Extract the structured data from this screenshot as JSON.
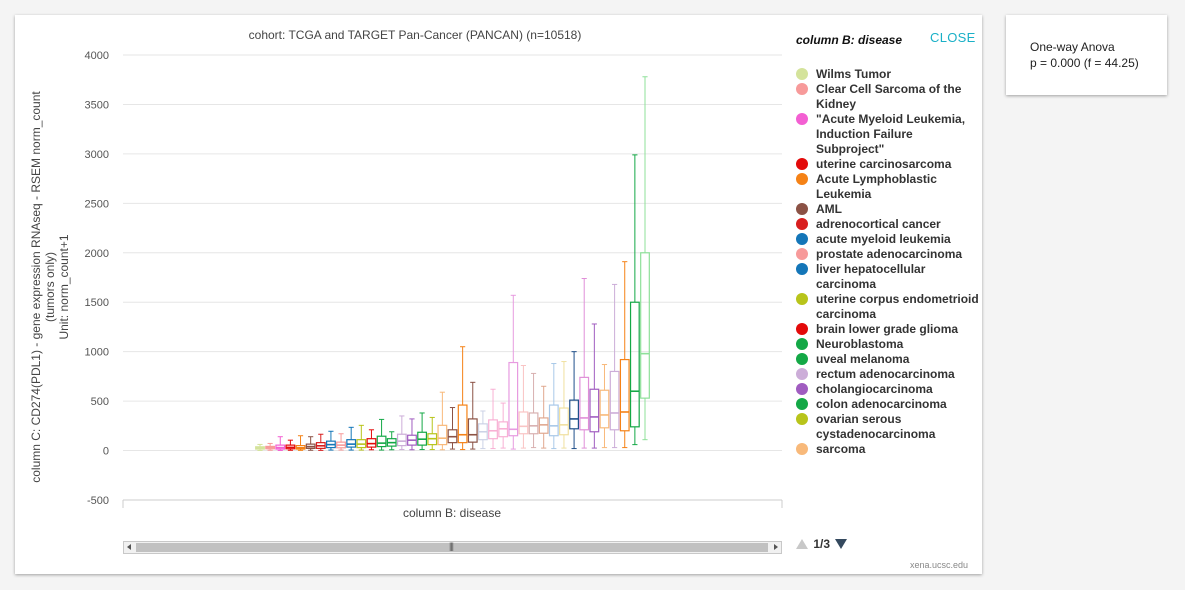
{
  "close_label": "CLOSE",
  "legend_title": "column B: disease",
  "legend": [
    {
      "name": "Wilms Tumor",
      "color": "#d4e39b"
    },
    {
      "name": "Clear Cell Sarcoma of the Kidney",
      "color": "#f79a9a"
    },
    {
      "name": "\"Acute Myeloid Leukemia, Induction Failure Subproject\"",
      "color": "#f35fd2"
    },
    {
      "name": "uterine carcinosarcoma",
      "color": "#e30a0a"
    },
    {
      "name": "Acute Lymphoblastic Leukemia",
      "color": "#f58216"
    },
    {
      "name": "AML",
      "color": "#8b5245"
    },
    {
      "name": "adrenocortical cancer",
      "color": "#d81e1e"
    },
    {
      "name": "acute myeloid leukemia",
      "color": "#1476b8"
    },
    {
      "name": "prostate adenocarcinoma",
      "color": "#f79a9a"
    },
    {
      "name": "liver hepatocellular carcinoma",
      "color": "#1476b8"
    },
    {
      "name": "uterine corpus endometrioid carcinoma",
      "color": "#b8c41b"
    },
    {
      "name": "brain lower grade glioma",
      "color": "#e30a0a"
    },
    {
      "name": "Neuroblastoma",
      "color": "#14a846"
    },
    {
      "name": "uveal melanoma",
      "color": "#14a846"
    },
    {
      "name": "rectum adenocarcinoma",
      "color": "#ccadd8"
    },
    {
      "name": "cholangiocarcinoma",
      "color": "#a05cc0"
    },
    {
      "name": "colon adenocarcinoma",
      "color": "#14a846"
    },
    {
      "name": "ovarian serous cystadenocarcinoma",
      "color": "#b8c41b"
    },
    {
      "name": "sarcoma",
      "color": "#f8b97a"
    }
  ],
  "pager": {
    "text": "1/3"
  },
  "stats": {
    "line1": "One-way Anova",
    "line2": "p = 0.000 (f = 44.25)"
  },
  "credit": "xena.ucsc.edu",
  "chart_data": {
    "type": "box",
    "title": "cohort: TCGA and TARGET Pan-Cancer (PANCAN) (n=10518)",
    "xlabel": "column B: disease",
    "ylabel": [
      "column C: CD274(PDL1) - gene expression RNAseq - RSEM norm_count",
      "(tumors only)",
      "Unit: norm_count+1"
    ],
    "ylim": [
      -500,
      4000
    ],
    "yticks": [
      -500,
      0,
      500,
      1000,
      1500,
      2000,
      2500,
      3000,
      3500,
      4000
    ],
    "grid": true,
    "legend_position": "right",
    "boxes": [
      {
        "color": "#d4e39b",
        "min": 1,
        "q1": 15,
        "median": 28,
        "q3": 38,
        "max": 62
      },
      {
        "color": "#f79a9a",
        "min": 3,
        "q1": 18,
        "median": 30,
        "q3": 42,
        "max": 72
      },
      {
        "color": "#f35fd2",
        "min": 1,
        "q1": 15,
        "median": 30,
        "q3": 55,
        "max": 140
      },
      {
        "color": "#e30a0a",
        "min": 3,
        "q1": 18,
        "median": 32,
        "q3": 55,
        "max": 105
      },
      {
        "color": "#f58216",
        "min": 2,
        "q1": 15,
        "median": 28,
        "q3": 50,
        "max": 150
      },
      {
        "color": "#8b5245",
        "min": 3,
        "q1": 22,
        "median": 40,
        "q3": 65,
        "max": 140
      },
      {
        "color": "#d81e1e",
        "min": 2,
        "q1": 22,
        "median": 48,
        "q3": 80,
        "max": 165
      },
      {
        "color": "#1476b8",
        "min": 5,
        "q1": 30,
        "median": 60,
        "q3": 95,
        "max": 195
      },
      {
        "color": "#f79a9a",
        "min": 5,
        "q1": 28,
        "median": 55,
        "q3": 85,
        "max": 170
      },
      {
        "color": "#1476b8",
        "min": 5,
        "q1": 35,
        "median": 65,
        "q3": 110,
        "max": 235
      },
      {
        "color": "#b8c41b",
        "min": 5,
        "q1": 30,
        "median": 65,
        "q3": 110,
        "max": 255
      },
      {
        "color": "#e30a0a",
        "min": 8,
        "q1": 35,
        "median": 70,
        "q3": 120,
        "max": 210
      },
      {
        "color": "#14a846",
        "min": 5,
        "q1": 40,
        "median": 75,
        "q3": 145,
        "max": 315
      },
      {
        "color": "#14a846",
        "min": 8,
        "q1": 45,
        "median": 80,
        "q3": 120,
        "max": 190
      },
      {
        "color": "#ccadd8",
        "min": 10,
        "q1": 50,
        "median": 95,
        "q3": 165,
        "max": 350
      },
      {
        "color": "#a05cc0",
        "min": 8,
        "q1": 55,
        "median": 105,
        "q3": 155,
        "max": 320
      },
      {
        "color": "#14a846",
        "min": 10,
        "q1": 55,
        "median": 115,
        "q3": 185,
        "max": 380
      },
      {
        "color": "#b8c41b",
        "min": 10,
        "q1": 60,
        "median": 120,
        "q3": 170,
        "max": 335
      },
      {
        "color": "#f8b97a",
        "min": 8,
        "q1": 60,
        "median": 125,
        "q3": 255,
        "max": 590
      },
      {
        "color": "#8b5245",
        "min": 15,
        "q1": 80,
        "median": 140,
        "q3": 210,
        "max": 435
      },
      {
        "color": "#f58216",
        "min": 10,
        "q1": 80,
        "median": 160,
        "q3": 460,
        "max": 1050
      },
      {
        "color": "#8b5245",
        "min": 15,
        "q1": 85,
        "median": 160,
        "q3": 320,
        "max": 690
      },
      {
        "color": "#ccd2e6",
        "min": 20,
        "q1": 110,
        "median": 190,
        "q3": 270,
        "max": 400
      },
      {
        "color": "#f8b0d4",
        "min": 20,
        "q1": 120,
        "median": 200,
        "q3": 310,
        "max": 620
      },
      {
        "color": "#f8b0d4",
        "min": 25,
        "q1": 140,
        "median": 220,
        "q3": 290,
        "max": 480
      },
      {
        "color": "#e79be0",
        "min": 15,
        "q1": 150,
        "median": 215,
        "q3": 890,
        "max": 1570
      },
      {
        "color": "#f9c4c4",
        "min": 25,
        "q1": 170,
        "median": 245,
        "q3": 390,
        "max": 860
      },
      {
        "color": "#d8b0b0",
        "min": 30,
        "q1": 170,
        "median": 250,
        "q3": 380,
        "max": 780
      },
      {
        "color": "#e0a890",
        "min": 25,
        "q1": 175,
        "median": 260,
        "q3": 330,
        "max": 650
      },
      {
        "color": "#a8c8e8",
        "min": 20,
        "q1": 150,
        "median": 250,
        "q3": 460,
        "max": 880
      },
      {
        "color": "#f0e0a0",
        "min": 25,
        "q1": 160,
        "median": 260,
        "q3": 430,
        "max": 900
      },
      {
        "color": "#1f4f8a",
        "min": 20,
        "q1": 220,
        "median": 320,
        "q3": 510,
        "max": 1000
      },
      {
        "color": "#e08fd8",
        "min": 25,
        "q1": 210,
        "median": 330,
        "q3": 740,
        "max": 1740
      },
      {
        "color": "#a05cc0",
        "min": 25,
        "q1": 190,
        "median": 340,
        "q3": 620,
        "max": 1280
      },
      {
        "color": "#f8b97a",
        "min": 30,
        "q1": 230,
        "median": 360,
        "q3": 610,
        "max": 870
      },
      {
        "color": "#ccadd8",
        "min": 30,
        "q1": 210,
        "median": 380,
        "q3": 800,
        "max": 1680
      },
      {
        "color": "#f58216",
        "min": 30,
        "q1": 200,
        "median": 390,
        "q3": 920,
        "max": 1910
      },
      {
        "color": "#14a846",
        "min": 60,
        "q1": 240,
        "median": 600,
        "q3": 1500,
        "max": 2990
      },
      {
        "color": "#8fe09a",
        "min": 110,
        "q1": 530,
        "median": 980,
        "q3": 2000,
        "max": 3780
      }
    ]
  }
}
